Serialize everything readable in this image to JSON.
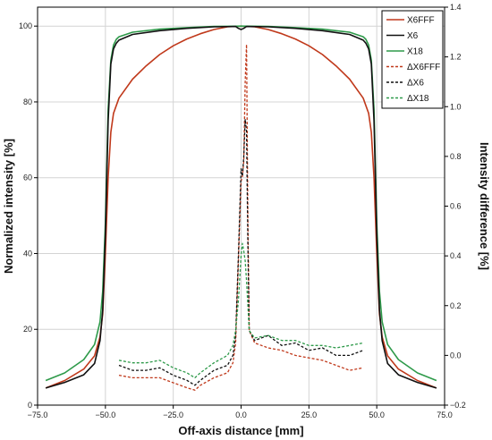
{
  "chart_data": {
    "type": "line",
    "xlabel": "Off-axis distance [mm]",
    "ylabel_left": "Normalized intensity [%]",
    "ylabel_right": "Intensity difference [%]",
    "xlim": [
      -75,
      75
    ],
    "ylim_left": [
      0,
      105
    ],
    "ylim_right": [
      -0.2,
      1.4
    ],
    "x_ticks": [
      -75,
      -50,
      -25,
      0,
      25,
      50,
      75
    ],
    "x_tick_labels": [
      "−75.0",
      "−50.0",
      "−25.0",
      "0.0",
      "25.0",
      "50.0",
      "75.0"
    ],
    "y_left_ticks": [
      0,
      20,
      40,
      60,
      80,
      100
    ],
    "y_left_tick_labels": [
      "0",
      "20",
      "40",
      "60",
      "80",
      "100"
    ],
    "y_right_ticks": [
      -0.2,
      0,
      0.2,
      0.4,
      0.6,
      0.8,
      1.0,
      1.2,
      1.4
    ],
    "y_right_tick_labels": [
      "−0.2",
      "0.0",
      "0.2",
      "0.4",
      "0.6",
      "0.8",
      "1.0",
      "1.2",
      "1.4"
    ],
    "grid": true,
    "legend_position": "top-right",
    "series": [
      {
        "name": "X6FFF",
        "axis": "left",
        "color": "#c0391b",
        "dash": "solid",
        "x": [
          -72,
          -65,
          -58,
          -54,
          -52,
          -51,
          -50,
          -49,
          -48,
          -47,
          -45,
          -40,
          -35,
          -30,
          -25,
          -20,
          -15,
          -10,
          -5,
          0,
          5,
          10,
          15,
          20,
          25,
          30,
          35,
          40,
          45,
          47,
          48,
          49,
          50,
          51,
          52,
          54,
          58,
          65,
          72
        ],
        "y": [
          4.5,
          6.5,
          9.5,
          13,
          18,
          24,
          40,
          60,
          72,
          77,
          81,
          86,
          89.5,
          92.5,
          94.8,
          96.6,
          98,
          99.1,
          99.8,
          100,
          99.8,
          99.1,
          98,
          96.6,
          94.8,
          92.5,
          89.5,
          86,
          81,
          77,
          72,
          60,
          40,
          24,
          18,
          13,
          9.5,
          6.5,
          4.5
        ]
      },
      {
        "name": "X6",
        "axis": "left",
        "color": "#111111",
        "dash": "solid",
        "x": [
          -72,
          -65,
          -58,
          -54,
          -52,
          -51,
          -50,
          -49,
          -48,
          -47,
          -46,
          -45,
          -40,
          -30,
          -20,
          -10,
          -2,
          -1,
          0,
          1,
          2,
          10,
          20,
          30,
          40,
          45,
          46,
          47,
          48,
          49,
          50,
          51,
          52,
          54,
          58,
          65,
          72
        ],
        "y": [
          4.5,
          6,
          8,
          11,
          17,
          25,
          45,
          75,
          90,
          94,
          95.5,
          96.3,
          97.8,
          98.8,
          99.4,
          99.8,
          99.9,
          99.4,
          99.1,
          99.4,
          99.9,
          99.8,
          99.4,
          98.8,
          97.8,
          96.3,
          95.5,
          94,
          90,
          75,
          45,
          25,
          17,
          11,
          8,
          6,
          4.5
        ]
      },
      {
        "name": "X18",
        "axis": "left",
        "color": "#2e9a4a",
        "dash": "solid",
        "x": [
          -72,
          -65,
          -58,
          -54,
          -52,
          -51,
          -50,
          -49,
          -48,
          -47,
          -46,
          -45,
          -40,
          -30,
          -20,
          -10,
          0,
          10,
          20,
          30,
          40,
          45,
          46,
          47,
          48,
          49,
          50,
          51,
          52,
          54,
          58,
          65,
          72
        ],
        "y": [
          6.5,
          8.5,
          12,
          16,
          22,
          30,
          48,
          78,
          91,
          95,
          96.5,
          97.2,
          98.4,
          99.2,
          99.6,
          99.9,
          100,
          99.9,
          99.6,
          99.2,
          98.4,
          97.2,
          96.5,
          95,
          91,
          78,
          48,
          30,
          22,
          16,
          12,
          8.5,
          6.5
        ]
      },
      {
        "name": "ΔX6FFF",
        "axis": "right",
        "color": "#c0391b",
        "dash": "dashed",
        "x": [
          -45,
          -40,
          -35,
          -30,
          -25,
          -20,
          -17,
          -15,
          -10,
          -5,
          -3,
          -2,
          -1,
          0,
          0.5,
          1,
          1.5,
          2,
          2.5,
          3,
          5,
          10,
          15,
          20,
          25,
          30,
          35,
          40,
          45
        ],
        "y": [
          -0.08,
          -0.09,
          -0.09,
          -0.09,
          -0.11,
          -0.13,
          -0.14,
          -0.12,
          -0.09,
          -0.07,
          -0.03,
          0.05,
          0.38,
          0.7,
          0.72,
          0.78,
          1.1,
          1.25,
          0.55,
          0.1,
          0.05,
          0.03,
          0.02,
          0.0,
          -0.01,
          -0.02,
          -0.04,
          -0.06,
          -0.05
        ]
      },
      {
        "name": "ΔX6",
        "axis": "right",
        "color": "#111111",
        "dash": "dashed",
        "x": [
          -45,
          -40,
          -35,
          -30,
          -25,
          -20,
          -17,
          -15,
          -10,
          -5,
          -3,
          -2,
          -1,
          0,
          0.5,
          1,
          1.5,
          2,
          2.5,
          3,
          5,
          10,
          15,
          20,
          25,
          30,
          35,
          40,
          45
        ],
        "y": [
          -0.04,
          -0.06,
          -0.06,
          -0.05,
          -0.08,
          -0.1,
          -0.12,
          -0.1,
          -0.06,
          -0.04,
          0.0,
          0.08,
          0.4,
          0.75,
          0.72,
          0.8,
          0.95,
          0.9,
          0.45,
          0.1,
          0.06,
          0.08,
          0.04,
          0.05,
          0.02,
          0.03,
          0.0,
          0.0,
          0.02
        ]
      },
      {
        "name": "ΔX18",
        "axis": "right",
        "color": "#2e9a4a",
        "dash": "dashed",
        "x": [
          -45,
          -40,
          -35,
          -30,
          -25,
          -20,
          -17,
          -15,
          -10,
          -5,
          -3,
          -2,
          -1,
          0,
          0.5,
          1,
          1.5,
          2,
          2.5,
          3,
          5,
          10,
          15,
          20,
          25,
          30,
          35,
          40,
          45
        ],
        "y": [
          -0.02,
          -0.03,
          -0.03,
          -0.02,
          -0.05,
          -0.07,
          -0.09,
          -0.07,
          -0.03,
          0.0,
          0.04,
          0.1,
          0.22,
          0.4,
          0.45,
          0.42,
          0.38,
          0.3,
          0.2,
          0.1,
          0.07,
          0.08,
          0.06,
          0.06,
          0.04,
          0.04,
          0.03,
          0.04,
          0.05
        ]
      }
    ]
  }
}
